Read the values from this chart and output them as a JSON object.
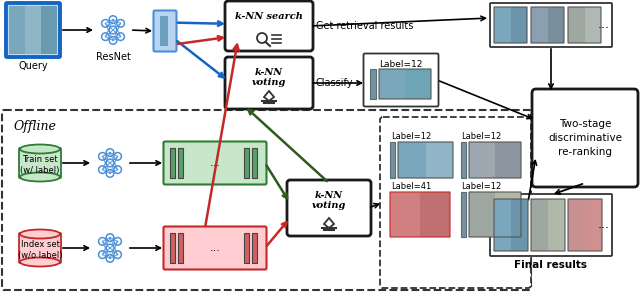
{
  "bg_color": "#ffffff",
  "arrow_blue": "#1565C0",
  "arrow_red": "#C62828",
  "arrow_green": "#2E5A1C",
  "arrow_black": "#000000",
  "query_border": "#1565C0",
  "query_fill": "#BBDEFB",
  "feat_border_blue": "#4A90D9",
  "feat_fill_blue": "#B8D4F0",
  "feat_inner": "#6B9FBF",
  "nn_color": "#4A90D9",
  "knn_box_border": "#1a1a1a",
  "knn_box_fill": "#ffffff",
  "train_cyl_edge": "#2E7D32",
  "train_cyl_fill": "#C8E6C9",
  "index_cyl_edge": "#C62828",
  "index_cyl_fill": "#FFCDD2",
  "feat_green_edge": "#2E7D32",
  "feat_green_fill": "#C8E6C9",
  "feat_red_edge": "#C62828",
  "feat_red_fill": "#FFCDD2",
  "feat_green_bar": "#5A9F6A",
  "feat_red_bar": "#D06060",
  "offline_label": "Offline",
  "query_label": "Query",
  "resnet_label": "ResNet",
  "knn_search_label": "k-NN search",
  "knn_voting_label": "k-NN\nvoting",
  "get_results_label": "Get retrieval results",
  "classify_label": "Classify",
  "label12_top": "Label=12",
  "label12_top2": "Label=12",
  "label41": "Label=41",
  "label12_bot": "Label=12",
  "train_set_label": "Train set\n(w/ label)",
  "index_set_label": "Index set\n(w/o label)",
  "two_stage_label": "Two-stage\ndiscriminative\nre-ranking",
  "final_results_label": "Final results"
}
